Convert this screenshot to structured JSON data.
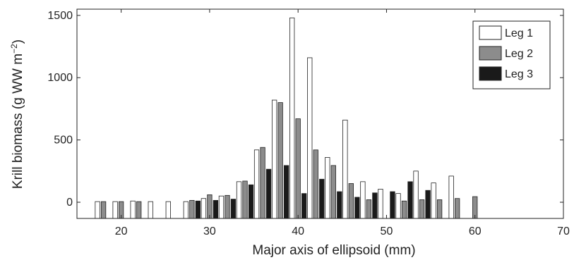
{
  "chart_data": {
    "type": "bar",
    "xlabel": "Major axis of ellipsoid (mm)",
    "ylabel": "Krill biomass (g WW m",
    "ylabel_sup": "−2",
    "ylabel_close": ")",
    "xlim": [
      15,
      70
    ],
    "ylim": [
      -130,
      1550
    ],
    "xticks": [
      20,
      30,
      40,
      50,
      60,
      70
    ],
    "yticks": [
      0,
      500,
      1000,
      1500
    ],
    "grid": false,
    "legend_position": "top-right",
    "bin_centers": [
      16,
      18,
      20,
      22,
      24,
      26,
      28,
      30,
      32,
      34,
      36,
      38,
      40,
      42,
      44,
      46,
      48,
      50,
      52,
      54,
      56,
      58,
      60,
      62,
      64,
      66
    ],
    "series": [
      {
        "name": "Leg 1",
        "color": "#ffffff",
        "values": [
          0,
          5,
          5,
          10,
          5,
          5,
          5,
          30,
          50,
          165,
          420,
          820,
          1480,
          1160,
          360,
          660,
          165,
          105,
          70,
          250,
          155,
          210,
          0,
          0,
          0,
          0
        ]
      },
      {
        "name": "Leg 2",
        "color": "#8c8c8c",
        "values": [
          0,
          5,
          5,
          5,
          0,
          0,
          15,
          60,
          55,
          170,
          440,
          800,
          670,
          420,
          295,
          150,
          20,
          0,
          10,
          20,
          20,
          30,
          45,
          0,
          0,
          0
        ]
      },
      {
        "name": "Leg 3",
        "color": "#1a1a1a",
        "values": [
          0,
          0,
          0,
          0,
          0,
          0,
          10,
          15,
          25,
          140,
          265,
          295,
          70,
          185,
          85,
          40,
          75,
          85,
          165,
          95,
          0,
          0,
          0,
          0,
          0,
          0
        ]
      }
    ]
  }
}
